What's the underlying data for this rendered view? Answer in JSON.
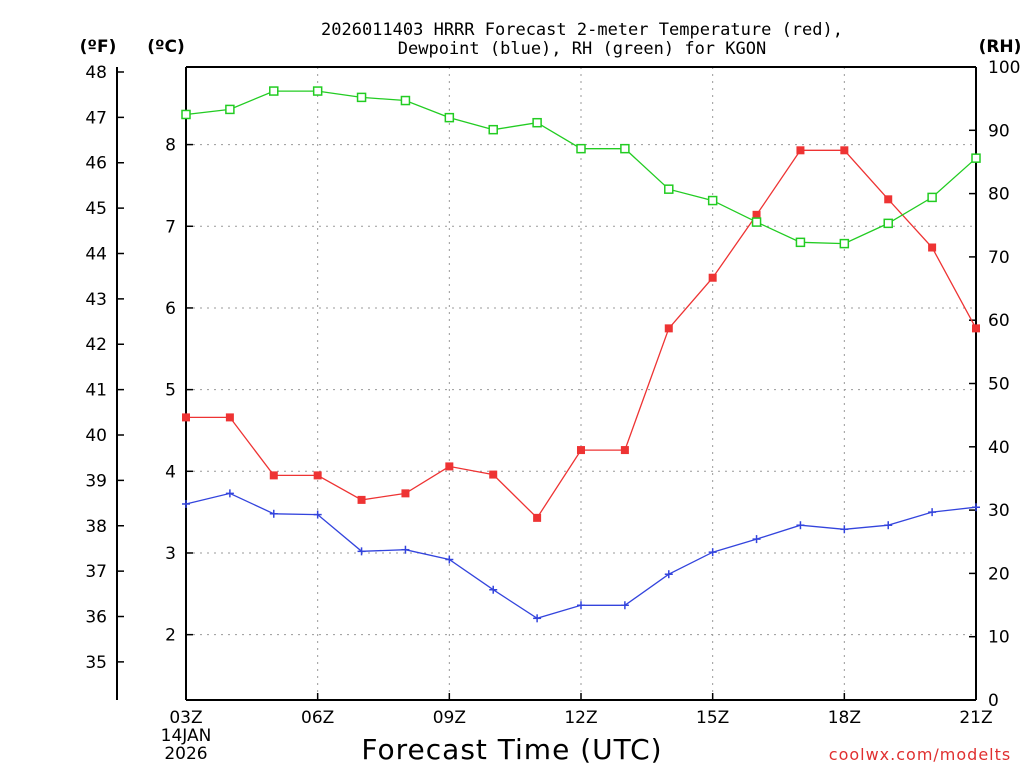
{
  "chart_data": {
    "type": "line",
    "title_line1": "2026011403 HRRR Forecast 2-meter Temperature (red),",
    "title_line2": "Dewpoint (blue), RH (green) for KGON",
    "xlabel": "Forecast Time (UTC)",
    "credit": "coolwx.com/modelts",
    "date_line1": "14JAN",
    "date_line2": "2026",
    "left_outer_unit": "(ºF)",
    "left_inner_unit": "(ºC)",
    "right_unit": "(RH)",
    "hours": [
      3,
      4,
      5,
      6,
      7,
      8,
      9,
      10,
      11,
      12,
      13,
      14,
      15,
      16,
      17,
      18,
      19,
      20,
      21
    ],
    "x_ticks": [
      "03Z",
      "06Z",
      "09Z",
      "12Z",
      "15Z",
      "18Z",
      "21Z"
    ],
    "x_tick_hours": [
      3,
      6,
      9,
      12,
      15,
      18,
      21
    ],
    "celsius_ticks": [
      "2",
      "3",
      "4",
      "5",
      "6",
      "7",
      "8"
    ],
    "fahrenheit_ticks": [
      "35",
      "36",
      "37",
      "38",
      "39",
      "40",
      "41",
      "42",
      "43",
      "44",
      "45",
      "46",
      "47",
      "48"
    ],
    "rh_ticks": [
      "0",
      "10",
      "20",
      "30",
      "40",
      "50",
      "60",
      "70",
      "80",
      "90",
      "100"
    ],
    "celsius_range": [
      1.2,
      8.95
    ],
    "rh_range": [
      0,
      100
    ],
    "series": [
      {
        "name": "Temperature",
        "unit": "C",
        "color": "#ee3333",
        "marker": "filled-square",
        "values": [
          4.66,
          4.66,
          3.95,
          3.95,
          3.65,
          3.73,
          4.06,
          3.96,
          3.43,
          4.26,
          4.26,
          5.75,
          6.37,
          7.14,
          7.93,
          7.93,
          7.33,
          6.74,
          5.75
        ]
      },
      {
        "name": "Dewpoint",
        "unit": "C",
        "color": "#3344dd",
        "marker": "plus",
        "values": [
          3.6,
          3.73,
          3.48,
          3.47,
          3.02,
          3.04,
          2.92,
          2.55,
          2.2,
          2.36,
          2.36,
          2.74,
          3.01,
          3.17,
          3.34,
          3.29,
          3.34,
          3.5,
          3.56
        ]
      },
      {
        "name": "RH",
        "unit": "%",
        "color": "#22cc22",
        "marker": "open-square",
        "values": [
          92.5,
          93.3,
          96.2,
          96.2,
          95.2,
          94.7,
          92.0,
          90.1,
          91.2,
          87.1,
          87.1,
          80.7,
          78.9,
          75.5,
          72.3,
          72.1,
          75.3,
          79.4,
          85.6
        ]
      }
    ]
  }
}
